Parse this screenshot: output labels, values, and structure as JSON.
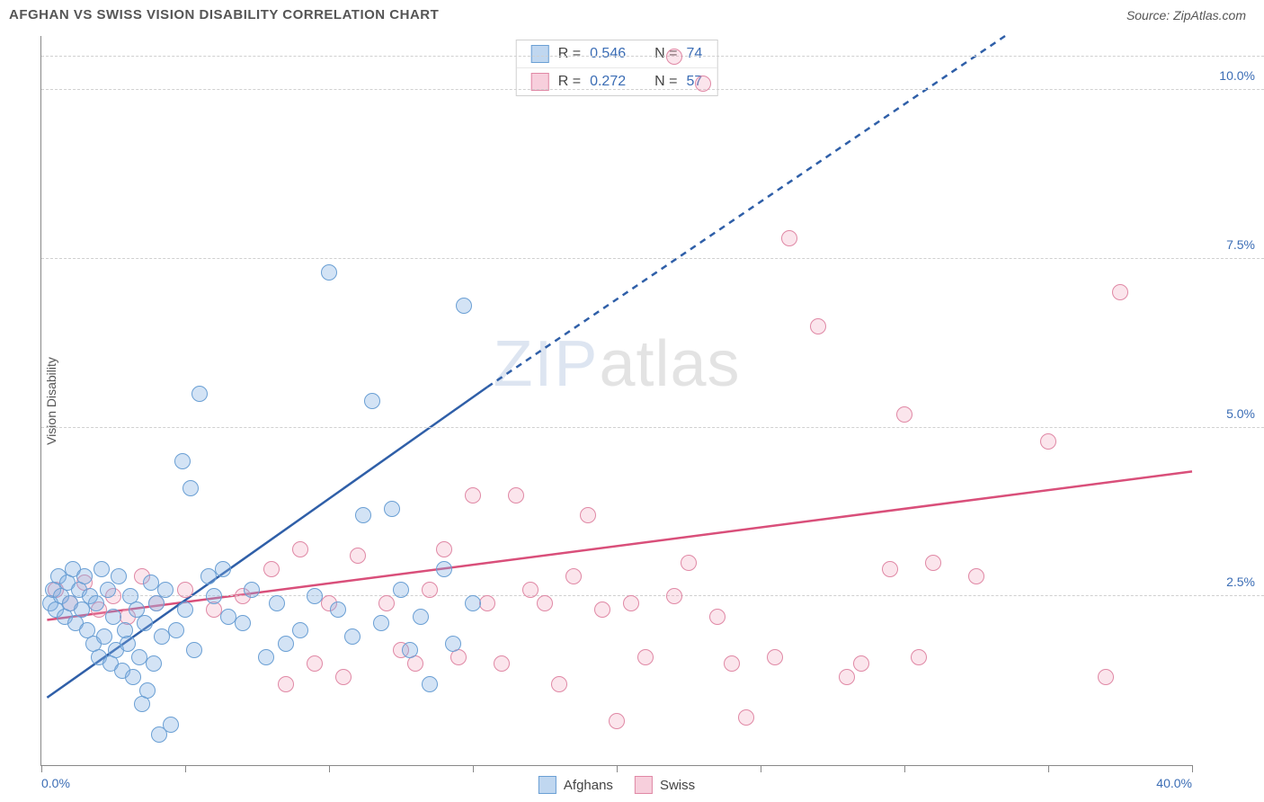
{
  "header": {
    "title": "AFGHAN VS SWISS VISION DISABILITY CORRELATION CHART",
    "source": "Source: ZipAtlas.com"
  },
  "ylabel": "Vision Disability",
  "watermark": {
    "part1": "ZIP",
    "part2": "atlas"
  },
  "chart": {
    "type": "scatter",
    "xlim": [
      0,
      40
    ],
    "ylim": [
      0,
      10.8
    ],
    "grid_color": "#d0d0d0",
    "background_color": "#ffffff",
    "axis_color": "#888888",
    "tick_label_color": "#3b6db5",
    "tick_fontsize": 14,
    "yticks": [
      {
        "v": 2.5,
        "label": "2.5%"
      },
      {
        "v": 5.0,
        "label": "5.0%"
      },
      {
        "v": 7.5,
        "label": "7.5%"
      },
      {
        "v": 10.0,
        "label": "10.0%"
      }
    ],
    "xticks": [
      {
        "v": 0,
        "label": "0.0%"
      },
      {
        "v": 5,
        "label": ""
      },
      {
        "v": 10,
        "label": ""
      },
      {
        "v": 15,
        "label": ""
      },
      {
        "v": 20,
        "label": ""
      },
      {
        "v": 25,
        "label": ""
      },
      {
        "v": 30,
        "label": ""
      },
      {
        "v": 35,
        "label": ""
      },
      {
        "v": 40,
        "label": "40.0%"
      }
    ],
    "marker_radius": 9,
    "marker_border_width": 1.5
  },
  "series": {
    "afghans": {
      "label": "Afghans",
      "color_fill": "rgba(130,175,225,0.35)",
      "color_stroke": "#6a9fd4",
      "R": "0.546",
      "N": "74",
      "trend": {
        "solid": {
          "x1": 0.2,
          "y1": 1.0,
          "x2": 15.5,
          "y2": 5.6
        },
        "dashed": {
          "x1": 15.5,
          "y1": 5.6,
          "x2": 33.5,
          "y2": 10.8
        },
        "color": "#2f5fa8",
        "width": 2.5
      },
      "points": [
        [
          0.3,
          2.4
        ],
        [
          0.4,
          2.6
        ],
        [
          0.5,
          2.3
        ],
        [
          0.6,
          2.8
        ],
        [
          0.7,
          2.5
        ],
        [
          0.8,
          2.2
        ],
        [
          0.9,
          2.7
        ],
        [
          1.0,
          2.4
        ],
        [
          1.1,
          2.9
        ],
        [
          1.2,
          2.1
        ],
        [
          1.3,
          2.6
        ],
        [
          1.4,
          2.3
        ],
        [
          1.5,
          2.8
        ],
        [
          1.6,
          2.0
        ],
        [
          1.7,
          2.5
        ],
        [
          1.8,
          1.8
        ],
        [
          1.9,
          2.4
        ],
        [
          2.0,
          1.6
        ],
        [
          2.1,
          2.9
        ],
        [
          2.2,
          1.9
        ],
        [
          2.3,
          2.6
        ],
        [
          2.4,
          1.5
        ],
        [
          2.5,
          2.2
        ],
        [
          2.6,
          1.7
        ],
        [
          2.7,
          2.8
        ],
        [
          2.8,
          1.4
        ],
        [
          2.9,
          2.0
        ],
        [
          3.0,
          1.8
        ],
        [
          3.1,
          2.5
        ],
        [
          3.2,
          1.3
        ],
        [
          3.3,
          2.3
        ],
        [
          3.4,
          1.6
        ],
        [
          3.5,
          0.9
        ],
        [
          3.6,
          2.1
        ],
        [
          3.7,
          1.1
        ],
        [
          3.8,
          2.7
        ],
        [
          3.9,
          1.5
        ],
        [
          4.0,
          2.4
        ],
        [
          4.1,
          0.45
        ],
        [
          4.2,
          1.9
        ],
        [
          4.3,
          2.6
        ],
        [
          4.5,
          0.6
        ],
        [
          4.7,
          2.0
        ],
        [
          4.9,
          4.5
        ],
        [
          5.0,
          2.3
        ],
        [
          5.2,
          4.1
        ],
        [
          5.3,
          1.7
        ],
        [
          5.5,
          5.5
        ],
        [
          5.8,
          2.8
        ],
        [
          6.0,
          2.5
        ],
        [
          6.3,
          2.9
        ],
        [
          6.5,
          2.2
        ],
        [
          7.0,
          2.1
        ],
        [
          7.3,
          2.6
        ],
        [
          7.8,
          1.6
        ],
        [
          8.2,
          2.4
        ],
        [
          8.5,
          1.8
        ],
        [
          9.0,
          2.0
        ],
        [
          9.5,
          2.5
        ],
        [
          10.0,
          7.3
        ],
        [
          10.3,
          2.3
        ],
        [
          10.8,
          1.9
        ],
        [
          11.2,
          3.7
        ],
        [
          11.5,
          5.4
        ],
        [
          11.8,
          2.1
        ],
        [
          12.2,
          3.8
        ],
        [
          12.5,
          2.6
        ],
        [
          12.8,
          1.7
        ],
        [
          13.2,
          2.2
        ],
        [
          13.5,
          1.2
        ],
        [
          14.0,
          2.9
        ],
        [
          14.3,
          1.8
        ],
        [
          14.7,
          6.8
        ],
        [
          15.0,
          2.4
        ]
      ]
    },
    "swiss": {
      "label": "Swiss",
      "color_fill": "rgba(240,160,185,0.28)",
      "color_stroke": "#e088a5",
      "R": "0.272",
      "N": "57",
      "trend": {
        "solid": {
          "x1": 0.2,
          "y1": 2.15,
          "x2": 40.0,
          "y2": 4.35
        },
        "color": "#d94f7a",
        "width": 2.5
      },
      "points": [
        [
          0.5,
          2.6
        ],
        [
          1.0,
          2.4
        ],
        [
          1.5,
          2.7
        ],
        [
          2.0,
          2.3
        ],
        [
          2.5,
          2.5
        ],
        [
          3.0,
          2.2
        ],
        [
          3.5,
          2.8
        ],
        [
          4.0,
          2.4
        ],
        [
          5.0,
          2.6
        ],
        [
          6.0,
          2.3
        ],
        [
          7.0,
          2.5
        ],
        [
          8.0,
          2.9
        ],
        [
          8.5,
          1.2
        ],
        [
          9.0,
          3.2
        ],
        [
          9.5,
          1.5
        ],
        [
          10.0,
          2.4
        ],
        [
          10.5,
          1.3
        ],
        [
          11.0,
          3.1
        ],
        [
          12.0,
          2.4
        ],
        [
          12.5,
          1.7
        ],
        [
          13.0,
          1.5
        ],
        [
          13.5,
          2.6
        ],
        [
          14.0,
          3.2
        ],
        [
          14.5,
          1.6
        ],
        [
          15.0,
          4.0
        ],
        [
          15.5,
          2.4
        ],
        [
          16.0,
          1.5
        ],
        [
          16.5,
          4.0
        ],
        [
          17.0,
          2.6
        ],
        [
          17.5,
          2.4
        ],
        [
          18.0,
          1.2
        ],
        [
          18.5,
          2.8
        ],
        [
          19.0,
          3.7
        ],
        [
          19.5,
          2.3
        ],
        [
          20.0,
          0.65
        ],
        [
          20.5,
          2.4
        ],
        [
          21.0,
          1.6
        ],
        [
          22.0,
          2.5
        ],
        [
          22.0,
          10.5
        ],
        [
          22.5,
          3.0
        ],
        [
          23.0,
          10.1
        ],
        [
          23.5,
          2.2
        ],
        [
          24.0,
          1.5
        ],
        [
          24.5,
          0.7
        ],
        [
          25.5,
          1.6
        ],
        [
          26.0,
          7.8
        ],
        [
          27.0,
          6.5
        ],
        [
          28.0,
          1.3
        ],
        [
          28.5,
          1.5
        ],
        [
          29.5,
          2.9
        ],
        [
          30.0,
          5.2
        ],
        [
          30.5,
          1.6
        ],
        [
          31.0,
          3.0
        ],
        [
          32.5,
          2.8
        ],
        [
          35.0,
          4.8
        ],
        [
          37.0,
          1.3
        ],
        [
          37.5,
          7.0
        ]
      ]
    }
  },
  "legend": {
    "top": [
      {
        "swatch": "blue",
        "r_label": "R =",
        "r_val": "0.546",
        "n_label": "N =",
        "n_val": "74"
      },
      {
        "swatch": "pink",
        "r_label": "R =",
        "r_val": "0.272",
        "n_label": "N =",
        "n_val": "57"
      }
    ],
    "bottom": [
      {
        "swatch": "blue",
        "label": "Afghans"
      },
      {
        "swatch": "pink",
        "label": "Swiss"
      }
    ]
  }
}
